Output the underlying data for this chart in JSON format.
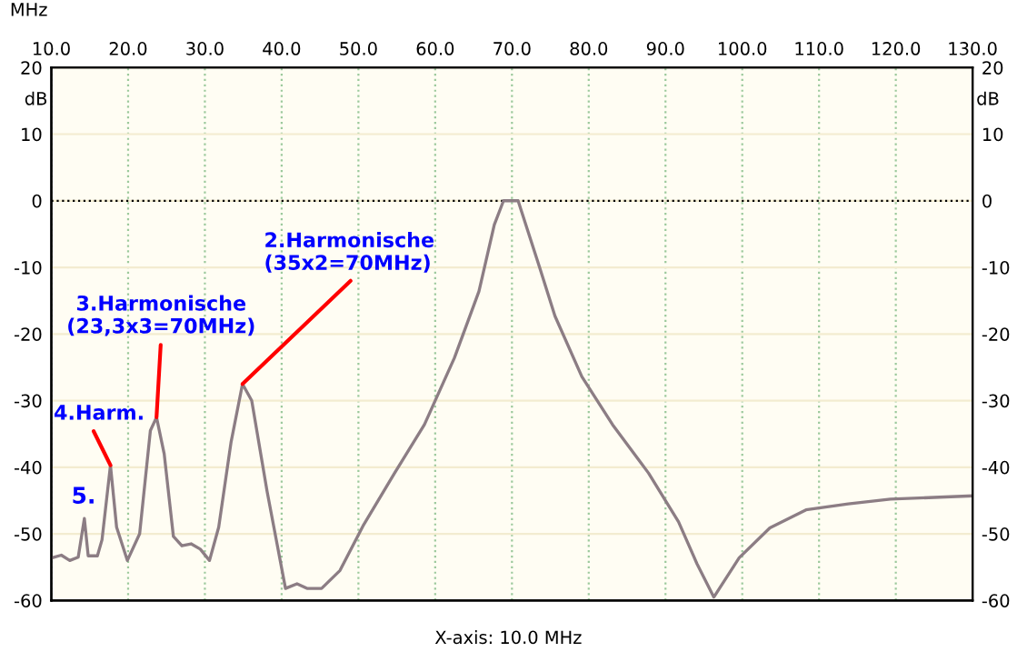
{
  "chart_data": {
    "type": "line",
    "xlabel": "MHz",
    "ylabel": "dB",
    "y2label": "dB",
    "x": [
      10.1,
      11.3,
      12.4,
      13.5,
      14.3,
      14.8,
      16.0,
      16.6,
      17.7,
      18.5,
      19.9,
      21.5,
      22.9,
      23.7,
      24.7,
      25.9,
      27.0,
      28.2,
      29.4,
      30.6,
      31.8,
      33.4,
      34.9,
      36.1,
      38.1,
      40.5,
      42.0,
      43.3,
      45.2,
      47.6,
      50.7,
      54.7,
      58.6,
      62.5,
      65.7,
      67.7,
      68.9,
      70.8,
      73.6,
      75.6,
      79.1,
      83.1,
      87.8,
      91.7,
      94.1,
      96.3,
      99.6,
      103.6,
      108.3,
      113.8,
      119.3,
      125.7,
      130
    ],
    "series": [
      {
        "color": "#8c7d84",
        "values": [
          -53.6,
          -53.2,
          -54,
          -53.5,
          -47.7,
          -53.3,
          -53.3,
          -50.9,
          -39.7,
          -49,
          -54,
          -50,
          -34.5,
          -32.5,
          -38,
          -50.4,
          -51.8,
          -51.5,
          -52.3,
          -54,
          -49,
          -36.3,
          -27.5,
          -30,
          -43.6,
          -58.2,
          -57.5,
          -58.2,
          -58.2,
          -55.5,
          -48.6,
          -40.9,
          -33.6,
          -23.6,
          -13.6,
          -3.6,
          0,
          0,
          -10,
          -17.3,
          -26.4,
          -33.6,
          -40.9,
          -48.2,
          -54.5,
          -59.5,
          -53.6,
          -49.1,
          -46.4,
          -45.5,
          -44.8,
          -44.5,
          -44.3
        ]
      }
    ],
    "xlim": [
      10,
      130
    ],
    "xticks": [
      {
        "value": 10,
        "label": "10.0"
      },
      {
        "value": 20,
        "label": "20.0"
      },
      {
        "value": 30,
        "label": "30.0"
      },
      {
        "value": 40,
        "label": "40.0"
      },
      {
        "value": 50,
        "label": "50.0"
      },
      {
        "value": 60,
        "label": "60.0"
      },
      {
        "value": 70,
        "label": "70.0"
      },
      {
        "value": 80,
        "label": "80.0"
      },
      {
        "value": 90,
        "label": "90.0"
      },
      {
        "value": 100,
        "label": "100.0"
      },
      {
        "value": 110,
        "label": "110.0"
      },
      {
        "value": 120,
        "label": "120.0"
      },
      {
        "value": 130,
        "label": "130.0"
      }
    ],
    "ylim": [
      -60,
      20
    ],
    "yticks": [
      20,
      10,
      0,
      -10,
      -20,
      -30,
      -40,
      -50,
      -60
    ],
    "y2lim": [
      -60,
      20
    ],
    "y2ticks": [
      20,
      10,
      0,
      -10,
      -20,
      -30,
      -40,
      -50,
      -60
    ],
    "grid": true,
    "marker": "none",
    "line_style": "solid",
    "ref_lines": [
      {
        "axis": "y",
        "value": 0,
        "color": "#000000",
        "line_style": "dotted"
      }
    ],
    "annotations": [
      {
        "text": "2.Harmonische\n(35x2=70MHz)",
        "x": 34.9,
        "y": -27.5
      },
      {
        "text": "3.Harmonische\n(23,3x3=70MHz)",
        "x": 23.7,
        "y": -32.5
      },
      {
        "text": "4.Harm.",
        "x": 17.7,
        "y": -39.7
      },
      "5.",
      "X-axis: 10.0 MHz"
    ]
  }
}
